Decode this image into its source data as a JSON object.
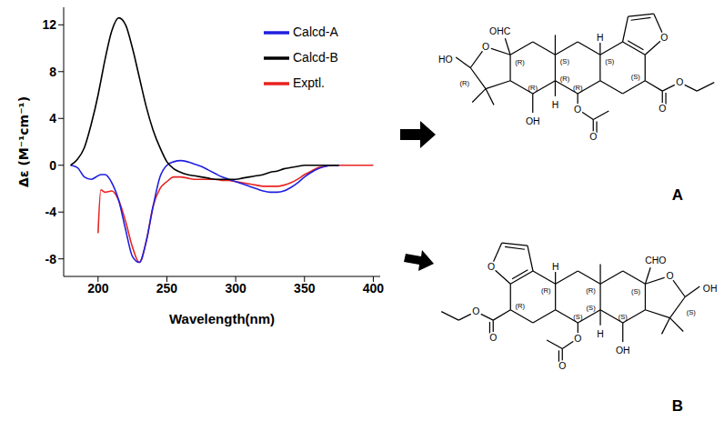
{
  "chart_data": {
    "type": "line",
    "x_label": "Wavelength(nm)",
    "y_label": "Δε (M⁻¹cm⁻¹)",
    "x": [
      180,
      185,
      190,
      195,
      200,
      202,
      205,
      210,
      215,
      220,
      225,
      230,
      235,
      240,
      245,
      250,
      255,
      260,
      265,
      270,
      275,
      280,
      285,
      290,
      295,
      300,
      305,
      310,
      315,
      320,
      325,
      330,
      335,
      340,
      345,
      350,
      355,
      360,
      365,
      370,
      375,
      380,
      385,
      390,
      395,
      400
    ],
    "series": [
      {
        "name": "Exptl.",
        "color": "#e8231f",
        "values": [
          null,
          null,
          null,
          null,
          -5.8,
          -2.1,
          -2.3,
          -2.2,
          -3.0,
          -4.8,
          -7.0,
          -8.3,
          -6.5,
          -3.5,
          -2.0,
          -1.4,
          -1.0,
          -1.0,
          -1.1,
          -1.2,
          -1.2,
          -1.2,
          -1.2,
          -1.3,
          -1.3,
          -1.4,
          -1.5,
          -1.6,
          -1.7,
          -1.8,
          -1.8,
          -1.8,
          -1.7,
          -1.5,
          -1.2,
          -0.8,
          -0.5,
          -0.2,
          -0.1,
          0,
          0,
          0,
          0,
          0,
          0,
          0
        ]
      },
      {
        "name": "Calcd-A",
        "color": "#1f1fe0",
        "values": [
          0,
          -0.2,
          -1.0,
          -1.2,
          -0.9,
          -0.8,
          -0.8,
          -1.5,
          -3.0,
          -5.5,
          -7.8,
          -8.3,
          -6.5,
          -3.5,
          -1.0,
          0,
          0.3,
          0.4,
          0.3,
          0.1,
          -0.1,
          -0.4,
          -0.7,
          -1.0,
          -1.2,
          -1.4,
          -1.6,
          -1.8,
          -2.0,
          -2.2,
          -2.3,
          -2.3,
          -2.2,
          -1.9,
          -1.5,
          -1.0,
          -0.6,
          -0.3,
          -0.1,
          0,
          0,
          null,
          null,
          null,
          null,
          null
        ]
      },
      {
        "name": "Calcd-B",
        "color": "#000000",
        "values": [
          0,
          0.5,
          1.5,
          3.5,
          6.0,
          7.2,
          9.0,
          11.5,
          12.6,
          12.0,
          10.0,
          7.5,
          5.0,
          3.0,
          1.5,
          0.3,
          -0.3,
          -0.6,
          -0.8,
          -0.9,
          -1.0,
          -1.1,
          -1.2,
          -1.2,
          -1.2,
          -1.2,
          -1.1,
          -1.0,
          -0.9,
          -0.8,
          -0.6,
          -0.5,
          -0.3,
          -0.2,
          -0.1,
          0,
          0,
          0,
          0,
          0,
          0,
          null,
          null,
          null,
          null,
          null
        ]
      }
    ],
    "xlim": [
      175,
      405
    ],
    "xticks": [
      200,
      250,
      300,
      350,
      400
    ],
    "ylim": [
      -9.5,
      13.5
    ],
    "yticks": [
      -8,
      -4,
      0,
      4,
      8,
      12
    ],
    "grid": false,
    "legend": "upper right"
  },
  "structures": [
    {
      "label": "A",
      "texts": [
        "HO",
        "OHC",
        "(R)",
        "(R)",
        "(S)",
        "H",
        "(S)",
        "(S)",
        "(R)",
        "H",
        "(R)",
        "(R)",
        "OH",
        "O",
        "O",
        "O",
        "O",
        "O",
        "O"
      ]
    },
    {
      "label": "B",
      "texts": [
        "OH",
        "CHO",
        "(S)",
        "(S)",
        "(R)",
        "H",
        "(R)",
        "(R)",
        "(S)",
        "H",
        "(S)",
        "(S)",
        "OH",
        "O",
        "O",
        "O",
        "O",
        "O",
        "O"
      ]
    }
  ]
}
